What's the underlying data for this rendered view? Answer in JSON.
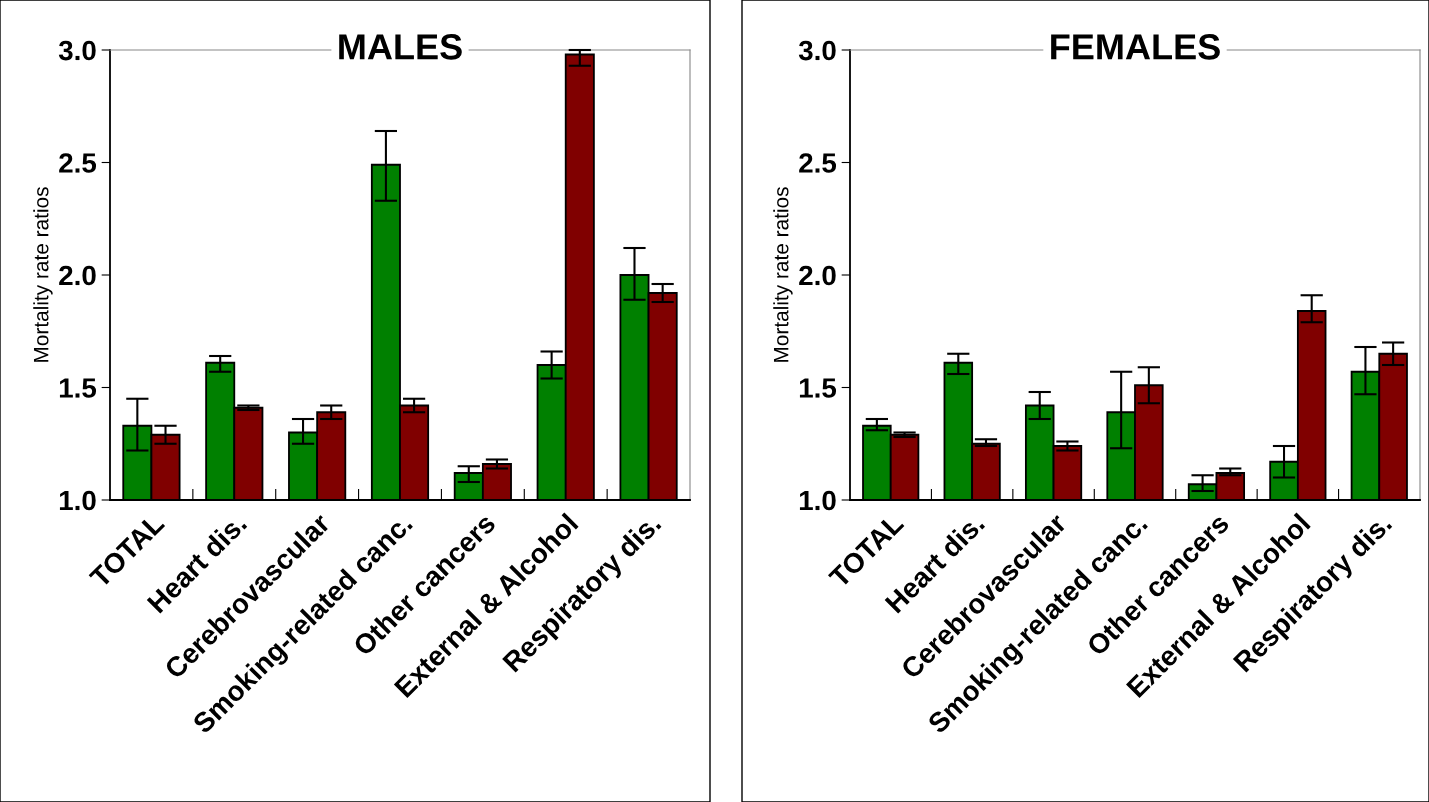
{
  "chart_data": [
    {
      "type": "bar",
      "title": "MALES",
      "ylabel": "Mortality rate ratios",
      "categories": [
        "TOTAL",
        "Heart dis.",
        "Cerebrovascular",
        "Smoking-related canc.",
        "Other cancers",
        "External & Alcohol",
        "Respiratory dis."
      ],
      "series": [
        {
          "color": "#008000",
          "values": [
            1.33,
            1.61,
            1.3,
            2.49,
            1.12,
            1.6,
            2.0
          ],
          "errors": [
            [
              1.22,
              1.45
            ],
            [
              1.57,
              1.64
            ],
            [
              1.25,
              1.36
            ],
            [
              2.33,
              2.64
            ],
            [
              1.08,
              1.15
            ],
            [
              1.54,
              1.66
            ],
            [
              1.89,
              2.12
            ]
          ]
        },
        {
          "color": "#800000",
          "values": [
            1.29,
            1.41,
            1.39,
            1.42,
            1.16,
            2.98,
            1.92
          ],
          "errors": [
            [
              1.25,
              1.33
            ],
            [
              1.4,
              1.42
            ],
            [
              1.36,
              1.42
            ],
            [
              1.39,
              1.45
            ],
            [
              1.14,
              1.18
            ],
            [
              2.93,
              3.0
            ],
            [
              1.88,
              1.96
            ]
          ]
        }
      ],
      "ylim": [
        1.0,
        3.0
      ],
      "yticks": [
        {
          "value": 1.0,
          "label": "1.0"
        },
        {
          "value": 1.5,
          "label": "1.5"
        },
        {
          "value": 2.0,
          "label": "2.0"
        },
        {
          "value": 2.5,
          "label": "2.5"
        },
        {
          "value": 3.0,
          "label": "3.0"
        }
      ],
      "grid": false
    },
    {
      "type": "bar",
      "title": "FEMALES",
      "ylabel": "Mortality rate ratios",
      "categories": [
        "TOTAL",
        "Heart dis.",
        "Cerebrovascular",
        "Smoking-related canc.",
        "Other cancers",
        "External & Alcohol",
        "Respiratory dis."
      ],
      "series": [
        {
          "color": "#008000",
          "values": [
            1.33,
            1.61,
            1.42,
            1.39,
            1.07,
            1.17,
            1.57
          ],
          "errors": [
            [
              1.31,
              1.36
            ],
            [
              1.56,
              1.65
            ],
            [
              1.36,
              1.48
            ],
            [
              1.23,
              1.57
            ],
            [
              1.04,
              1.11
            ],
            [
              1.1,
              1.24
            ],
            [
              1.47,
              1.68
            ]
          ]
        },
        {
          "color": "#800000",
          "values": [
            1.29,
            1.25,
            1.24,
            1.51,
            1.12,
            1.84,
            1.65
          ],
          "errors": [
            [
              1.28,
              1.3
            ],
            [
              1.24,
              1.27
            ],
            [
              1.22,
              1.26
            ],
            [
              1.43,
              1.59
            ],
            [
              1.11,
              1.14
            ],
            [
              1.79,
              1.91
            ],
            [
              1.6,
              1.7
            ]
          ]
        }
      ],
      "ylim": [
        1.0,
        3.0
      ],
      "yticks": [
        {
          "value": 1.0,
          "label": "1.0"
        },
        {
          "value": 1.5,
          "label": "1.5"
        },
        {
          "value": 2.0,
          "label": "2.0"
        },
        {
          "value": 2.5,
          "label": "2.5"
        },
        {
          "value": 3.0,
          "label": "3.0"
        }
      ],
      "grid": false
    }
  ]
}
